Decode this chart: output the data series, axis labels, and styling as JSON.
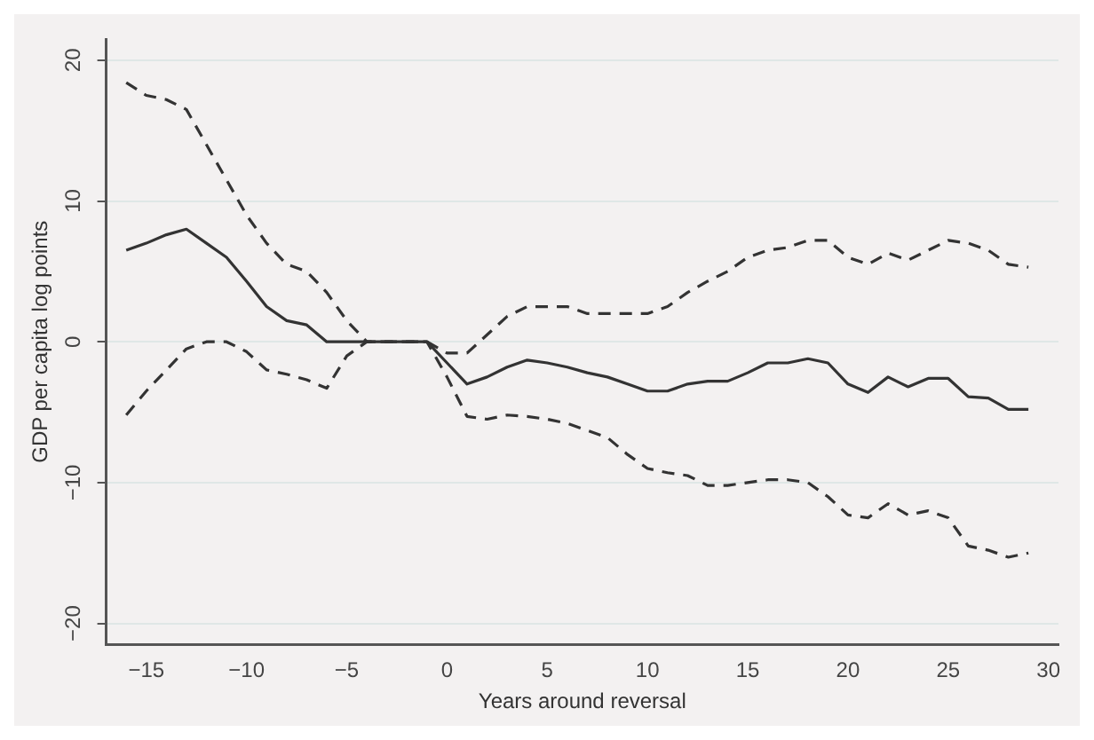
{
  "chart_data": {
    "type": "line",
    "xlabel": "Years around reversal",
    "ylabel": "GDP per capita log points",
    "x": [
      -16,
      -15,
      -14,
      -13,
      -12,
      -11,
      -10,
      -9,
      -8,
      -7,
      -6,
      -5,
      -4,
      -3,
      -2,
      -1,
      0,
      1,
      2,
      3,
      4,
      5,
      6,
      7,
      8,
      9,
      10,
      11,
      12,
      13,
      14,
      15,
      16,
      17,
      18,
      19,
      20,
      21,
      22,
      23,
      24,
      25,
      26,
      27,
      28,
      29
    ],
    "series": [
      {
        "color": "#333333",
        "line_style": "solid",
        "values": [
          6.5,
          7,
          7.6,
          8,
          7,
          6,
          4.3,
          2.5,
          1.5,
          1.2,
          0,
          0,
          0,
          0,
          0,
          0,
          -1.5,
          -3,
          -2.5,
          -1.8,
          -1.3,
          -1.5,
          -1.8,
          -2.2,
          -2.5,
          -3,
          -3.5,
          -3.5,
          -3,
          -2.8,
          -2.8,
          -2.2,
          -1.5,
          -1.5,
          -1.2,
          -1.5,
          -3,
          -3.6,
          -2.5,
          -3.2,
          -2.6,
          -2.6,
          -3.9,
          -4,
          -4.8,
          -4.8
        ]
      },
      {
        "color": "#333333",
        "line_style": "dashed",
        "values": [
          18.4,
          17.5,
          17.2,
          16.5,
          14,
          11.5,
          9,
          7,
          5.5,
          5,
          3.5,
          1.5,
          0,
          0,
          0,
          0,
          -0.8,
          -0.8,
          0.5,
          1.8,
          2.5,
          2.5,
          2.5,
          2,
          2,
          2,
          2,
          2.5,
          3.5,
          4.3,
          5,
          6,
          6.5,
          6.7,
          7.2,
          7.2,
          6,
          5.5,
          6.3,
          5.8,
          6.5,
          7.2,
          7,
          6.5,
          5.5,
          5.3
        ]
      },
      {
        "color": "#333333",
        "line_style": "dashed",
        "values": [
          -5.2,
          -3.5,
          -2,
          -0.5,
          0,
          0,
          -0.7,
          -2,
          -2.3,
          -2.7,
          -3.3,
          -1,
          0,
          0,
          0,
          0,
          -2.5,
          -5.3,
          -5.5,
          -5.2,
          -5.3,
          -5.5,
          -5.8,
          -6.3,
          -6.8,
          -8,
          -9,
          -9.3,
          -9.5,
          -10.2,
          -10.2,
          -10,
          -9.8,
          -9.8,
          -10,
          -11,
          -12.3,
          -12.5,
          -11.5,
          -12.3,
          -12,
          -12.5,
          -14.5,
          -14.8,
          -15.3,
          -15
        ]
      }
    ],
    "xlim": [
      -17,
      30.5
    ],
    "xticks": [
      -15,
      -10,
      -5,
      0,
      5,
      10,
      15,
      20,
      25,
      30
    ],
    "ylim": [
      -21.5,
      21.5
    ],
    "yticks": [
      -20,
      -10,
      0,
      10,
      20
    ],
    "grid": "y",
    "legend": false,
    "marker": "none"
  }
}
